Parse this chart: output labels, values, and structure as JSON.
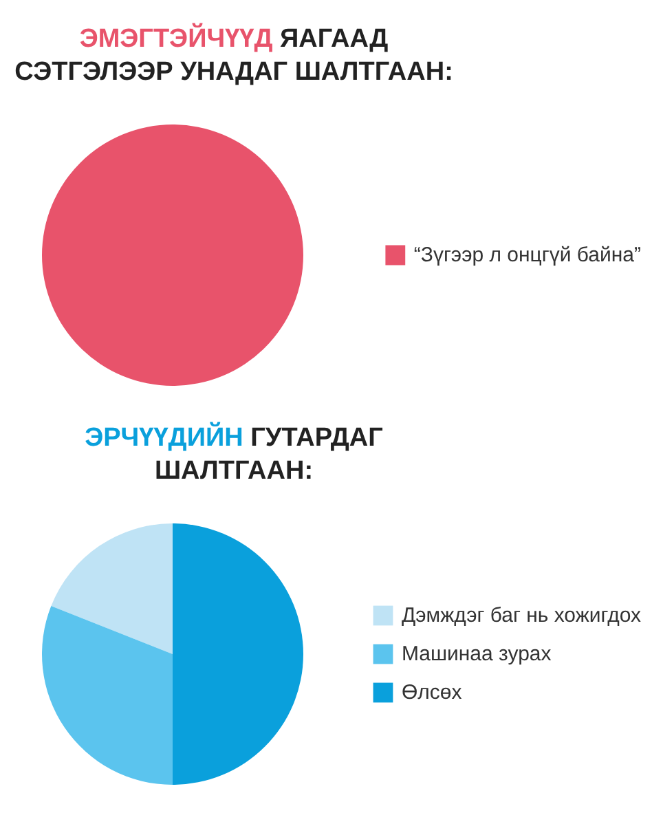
{
  "chart_data": [
    {
      "type": "pie",
      "title": "ЭМЭГТЭЙЧҮҮД ЯАГААД СЭТГЭЛЭЭР УНАДАГ ШАЛТГААН:",
      "categories": [
        "“Зүгээр л онцгүй байна”"
      ],
      "values": [
        100
      ],
      "colors": [
        "#e8536b"
      ],
      "legend": "right"
    },
    {
      "type": "pie",
      "title": "ЭРЧҮҮДИЙН ГУТАРДАГ ШАЛТГААН:",
      "categories": [
        "Дэмждэг баг нь хожигдох",
        "Машинаа зурах",
        "Өлсөх"
      ],
      "values": [
        19,
        31,
        50
      ],
      "colors": [
        "#bfe3f5",
        "#5bc4ee",
        "#0aa0dc"
      ],
      "legend": "right"
    }
  ]
}
